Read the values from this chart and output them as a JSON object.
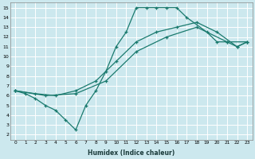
{
  "xlabel": "Humidex (Indice chaleur)",
  "bg_color": "#cce8ee",
  "grid_color": "#b0d8e0",
  "line_color": "#1a7a6e",
  "xlim": [
    -0.5,
    23.5
  ],
  "ylim": [
    1.5,
    15.5
  ],
  "xticks": [
    0,
    1,
    2,
    3,
    4,
    5,
    6,
    7,
    8,
    9,
    10,
    11,
    12,
    13,
    14,
    15,
    16,
    17,
    18,
    19,
    20,
    21,
    22,
    23
  ],
  "yticks": [
    2,
    3,
    4,
    5,
    6,
    7,
    8,
    9,
    10,
    11,
    12,
    13,
    14,
    15
  ],
  "line1_x": [
    0,
    1,
    2,
    3,
    4,
    5,
    6,
    7,
    8,
    9,
    10,
    11,
    12,
    13,
    14,
    15,
    16,
    17,
    19,
    20,
    21,
    22,
    23
  ],
  "line1_y": [
    6.5,
    6.2,
    5.7,
    5.0,
    4.5,
    3.5,
    2.5,
    5.0,
    6.5,
    8.5,
    11.0,
    12.5,
    15.0,
    15.0,
    15.0,
    15.0,
    15.0,
    14.0,
    12.5,
    11.5,
    11.5,
    11.0,
    11.5
  ],
  "line2_x": [
    0,
    2,
    4,
    6,
    8,
    10,
    12,
    14,
    16,
    18,
    20,
    22,
    23
  ],
  "line2_y": [
    6.5,
    6.2,
    6.0,
    6.5,
    7.5,
    9.5,
    11.5,
    12.5,
    13.0,
    13.5,
    12.5,
    11.0,
    11.5
  ],
  "line3_x": [
    0,
    3,
    6,
    9,
    12,
    15,
    18,
    21,
    23
  ],
  "line3_y": [
    6.5,
    6.0,
    6.2,
    7.5,
    10.5,
    12.0,
    13.0,
    11.5,
    11.5
  ]
}
